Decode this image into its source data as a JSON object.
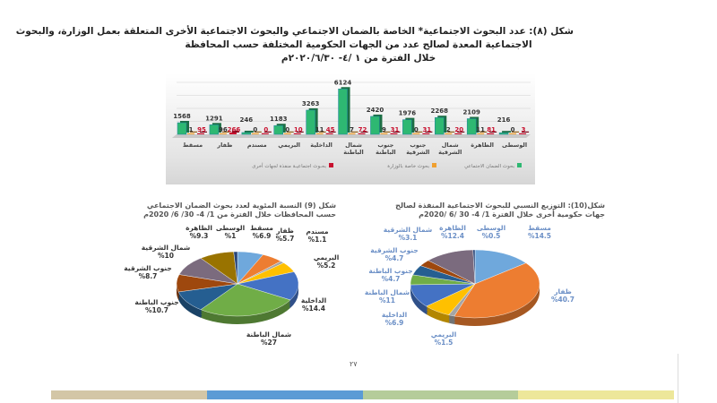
{
  "title": {
    "line1": "شكل (٨): عدد البحوث الاجتماعية* الخاصة بالضمان الاجتماعي والبحوث الاجتماعية الأخرى المتعلقة بعمل الوزارة، والبحوث",
    "line2": "الاجتماعية المعدة لصالح عدد من الجهات الحكومية المختلفة حسب المحافظة",
    "line3": "خلال الفترة من ١ /٤- ٢٠٢٠/٦/٣٠م"
  },
  "page_number": "٢٧",
  "footer_colors": [
    "#d3c6a6",
    "#5b9bd5",
    "#b5cc9a",
    "#ede79a"
  ],
  "chart_data": [
    {
      "type": "bar",
      "categories": [
        "مسقط",
        "ظفار",
        "مسندم",
        "البريمي",
        "الداخلية",
        "شمال الباطنة",
        "جنوب الباطنة",
        "جنوب الشرقية",
        "شمال الشرقية",
        "الظاهرة",
        "الوسطى"
      ],
      "series": [
        {
          "name": "بحوث الضمان الاجتماعي",
          "color": "#2eb872",
          "values": [
            1568,
            1291,
            246,
            1183,
            3263,
            6124,
            2420,
            1976,
            2268,
            2109,
            216
          ]
        },
        {
          "name": "بحوث خاصة بالوزارة",
          "color": "#f0a030",
          "values": [
            1,
            96,
            0,
            0,
            11,
            7,
            9,
            0,
            2,
            11,
            0
          ]
        },
        {
          "name": "بحـوث اجتماعيـة منفذة لجهات أخرى",
          "color": "#c8102e",
          "values": [
            95,
            266,
            0,
            10,
            45,
            72,
            31,
            31,
            20,
            81,
            3
          ]
        }
      ],
      "ylim": [
        0,
        7000
      ],
      "grid": true,
      "legend": "bottom"
    },
    {
      "type": "pie",
      "title": "شكل (9) النسبة المئوية لعدد بحوث الضمان الاجتماعي حسب المحافظات خلال الفترة من 1/ 4- 30/ 6/ 2020م",
      "categories": [
        "مسقط",
        "ظفار",
        "مسندم",
        "البريمي",
        "الداخلية",
        "شمال الباطنة",
        "جنوب الباطنة",
        "جنوب الشرقية",
        "شمال الشرقية",
        "الظاهرة",
        "الوسطى"
      ],
      "values": [
        6.9,
        5.7,
        1.1,
        5.2,
        14.4,
        27,
        10.7,
        8.7,
        10,
        9.3,
        1
      ],
      "labels": [
        "%6.9",
        "%5.7",
        "%1.1",
        "%5.2",
        "%14.4",
        "%27",
        "%10.7",
        "%8.7",
        "%10",
        "%9.3",
        "%1"
      ],
      "colors": [
        "#6fa8dc",
        "#ed7d31",
        "#a5a5a5",
        "#ffc000",
        "#4472c4",
        "#70ad47",
        "#255e91",
        "#9e480e",
        "#7b6b7e",
        "#997300",
        "#264478"
      ]
    },
    {
      "type": "pie",
      "title": "شكل(10): التوزيع النسبي للبحوث الاجتماعية المنفذة لصالح جهات حكومية أخرى خلال الفترة 1/ 4- 30 /6 /2020م",
      "categories": [
        "مسقط",
        "ظفار",
        "البريمي",
        "الداخلية",
        "شمال الباطنة",
        "جنوب الباطنة",
        "جنوب الشرقية",
        "شمال الشرقية",
        "الظاهرة",
        "الوسطى"
      ],
      "values": [
        14.5,
        40.7,
        1.5,
        6.9,
        11,
        4.7,
        4.7,
        3.1,
        12.4,
        0.5
      ],
      "labels": [
        "%14.5",
        "%40.7",
        "%1.5",
        "%6.9",
        "%11",
        "%4.7",
        "%4.7",
        "%3.1",
        "%12.4",
        "%0.5"
      ],
      "colors": [
        "#6fa8dc",
        "#ed7d31",
        "#a5a5a5",
        "#ffc000",
        "#4472c4",
        "#70ad47",
        "#255e91",
        "#9e480e",
        "#7b6b7e",
        "#264478"
      ]
    }
  ]
}
